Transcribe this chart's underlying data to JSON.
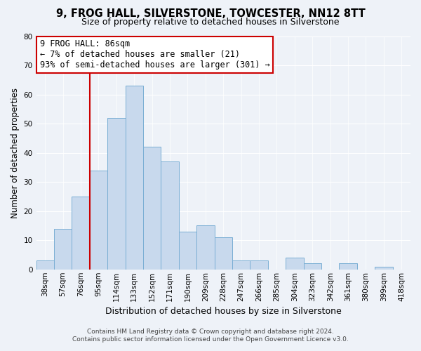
{
  "title": "9, FROG HALL, SILVERSTONE, TOWCESTER, NN12 8TT",
  "subtitle": "Size of property relative to detached houses in Silverstone",
  "xlabel": "Distribution of detached houses by size in Silverstone",
  "ylabel": "Number of detached properties",
  "bar_color": "#c8d9ed",
  "bar_edge_color": "#7aaed4",
  "background_color": "#eef2f8",
  "categories": [
    "38sqm",
    "57sqm",
    "76sqm",
    "95sqm",
    "114sqm",
    "133sqm",
    "152sqm",
    "171sqm",
    "190sqm",
    "209sqm",
    "228sqm",
    "247sqm",
    "266sqm",
    "285sqm",
    "304sqm",
    "323sqm",
    "342sqm",
    "361sqm",
    "380sqm",
    "399sqm",
    "418sqm"
  ],
  "values": [
    3,
    14,
    25,
    34,
    52,
    63,
    42,
    37,
    13,
    15,
    11,
    3,
    3,
    0,
    4,
    2,
    0,
    2,
    0,
    1,
    0
  ],
  "ylim": [
    0,
    80
  ],
  "yticks": [
    0,
    10,
    20,
    30,
    40,
    50,
    60,
    70,
    80
  ],
  "vline_color": "#cc0000",
  "vline_x": 2.5,
  "annotation_title": "9 FROG HALL: 86sqm",
  "annotation_line1": "← 7% of detached houses are smaller (21)",
  "annotation_line2": "93% of semi-detached houses are larger (301) →",
  "annotation_box_facecolor": "#ffffff",
  "annotation_box_edgecolor": "#cc0000",
  "footer_line1": "Contains HM Land Registry data © Crown copyright and database right 2024.",
  "footer_line2": "Contains public sector information licensed under the Open Government Licence v3.0.",
  "grid_color": "#ffffff",
  "title_fontsize": 10.5,
  "subtitle_fontsize": 9,
  "ylabel_fontsize": 8.5,
  "xlabel_fontsize": 9,
  "tick_fontsize": 7.5,
  "footer_fontsize": 6.5,
  "annotation_fontsize": 8.5
}
